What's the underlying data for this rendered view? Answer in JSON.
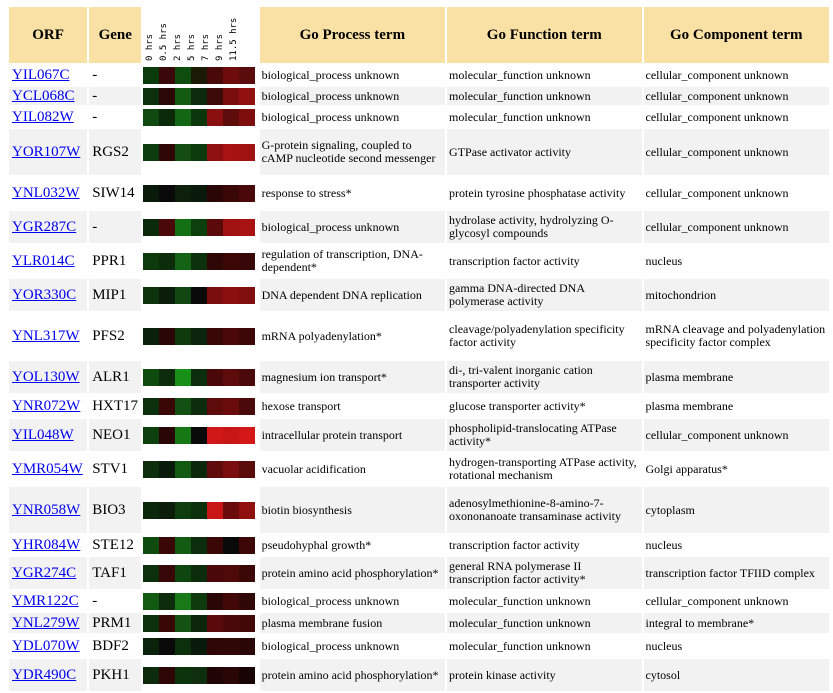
{
  "headers": {
    "orf": "ORF",
    "gene": "Gene",
    "process": "Go Process term",
    "function": "Go Function term",
    "component": "Go Component term"
  },
  "timepoints": [
    "0 hrs",
    "0.5 hrs",
    "2 hrs",
    "5 hrs",
    "7 hrs",
    "9 hrs",
    "11.5 hrs"
  ],
  "rows": [
    {
      "orf": "YIL067C",
      "gene": "-",
      "process": "biological_process unknown",
      "function": "molecular_function unknown",
      "component": "cellular_component unknown",
      "colors": [
        "#0b3a0b",
        "#3a0808",
        "#0f4d0f",
        "#1a1a05",
        "#4a0808",
        "#6e0c0c",
        "#5a0b0b"
      ]
    },
    {
      "orf": "YCL068C",
      "gene": "-",
      "process": "biological_process unknown",
      "function": "molecular_function unknown",
      "component": "cellular_component unknown",
      "colors": [
        "#0c300c",
        "#2c0707",
        "#135a13",
        "#0e2a0e",
        "#3d0808",
        "#7a0d0d",
        "#901010"
      ]
    },
    {
      "orf": "YIL082W",
      "gene": "-",
      "process": "biological_process unknown",
      "function": "molecular_function unknown",
      "component": "cellular_component unknown",
      "colors": [
        "#104a10",
        "#0a2a0a",
        "#136613",
        "#0c360c",
        "#8a0f0f",
        "#5e0b0b",
        "#7e0d0d"
      ]
    },
    {
      "orf": "YOR107W",
      "gene": "RGS2",
      "process": "G-protein signaling, coupled to cAMP nucleotide second messenger",
      "function": "GTPase activator activity",
      "component": "cellular_component unknown",
      "colors": [
        "#0e3c0e",
        "#300707",
        "#134d13",
        "#0c3a0c",
        "#8e1010",
        "#a81212",
        "#a01111"
      ]
    },
    {
      "orf": "YNL032W",
      "gene": "SIW14",
      "process": "response to stress*",
      "function": "protein tyrosine phosphatase activity",
      "component": "cellular_component unknown",
      "colors": [
        "#091a09",
        "#0a0a0a",
        "#0c200c",
        "#0a1a0a",
        "#2a0606",
        "#3a0707",
        "#4a0808"
      ]
    },
    {
      "orf": "YGR287C",
      "gene": "-",
      "process": "biological_process unknown",
      "function": "hydrolase activity, hydrolyzing O-glycosyl compounds",
      "component": "cellular_component unknown",
      "colors": [
        "#0a2a0a",
        "#4a0808",
        "#147014",
        "#0d3f0d",
        "#5a0a0a",
        "#a01111",
        "#a81212"
      ]
    },
    {
      "orf": "YLR014C",
      "gene": "PPR1",
      "process": "regulation of transcription, DNA-dependent*",
      "function": "transcription factor activity",
      "component": "nucleus",
      "colors": [
        "#0d3a0d",
        "#0c2c0c",
        "#146214",
        "#0d300d",
        "#2e0606",
        "#3e0707",
        "#380707"
      ]
    },
    {
      "orf": "YOR330C",
      "gene": "MIP1",
      "process": "DNA dependent DNA replication",
      "function": "gamma DNA-directed DNA polymerase activity",
      "component": "mitochondrion",
      "colors": [
        "#0c340c",
        "#0a1e0a",
        "#114811",
        "#0a0a0a",
        "#7a0d0d",
        "#8c0f0f",
        "#800e0e"
      ]
    },
    {
      "orf": "YNL317W",
      "gene": "PFS2",
      "process": "mRNA polyadenylation*",
      "function": "cleavage/polyadenylation specificity factor activity",
      "component": "mRNA cleavage and polyadenylation specificity factor complex",
      "colors": [
        "#0a200a",
        "#2a0606",
        "#0e3a0e",
        "#0c240c",
        "#3a0707",
        "#4a0808",
        "#3e0707"
      ]
    },
    {
      "orf": "YOL130W",
      "gene": "ALR1",
      "process": "magnesium ion transport*",
      "function": "di-, tri-valent inorganic cation transporter activity",
      "component": "plasma membrane",
      "colors": [
        "#0f4a0f",
        "#0c2c0c",
        "#189018",
        "#0d2e0d",
        "#4a0808",
        "#5e0b0b",
        "#4c0909"
      ]
    },
    {
      "orf": "YNR072W",
      "gene": "HXT17",
      "process": "hexose transport",
      "function": "glucose transporter activity*",
      "component": "plasma membrane",
      "colors": [
        "#0c300c",
        "#3a0707",
        "#135013",
        "#0c2c0c",
        "#5e0b0b",
        "#6a0c0c",
        "#4c0909"
      ]
    },
    {
      "orf": "YIL048W",
      "gene": "NEO1",
      "process": "intracellular protein transport",
      "function": "phospholipid-translocating ATPase activity*",
      "component": "cellular_component unknown",
      "colors": [
        "#0e400e",
        "#2a0606",
        "#157815",
        "#0a0a0a",
        "#d01818",
        "#c81616",
        "#d41818"
      ]
    },
    {
      "orf": "YMR054W",
      "gene": "STV1",
      "process": "vacuolar acidification",
      "function": "hydrogen-transporting ATPase activity, rotational mechanism",
      "component": "Golgi apparatus*",
      "colors": [
        "#0c2e0c",
        "#0a1a0a",
        "#125a12",
        "#0c280c",
        "#600b0b",
        "#7a0d0d",
        "#5a0b0b"
      ]
    },
    {
      "orf": "YNR058W",
      "gene": "BIO3",
      "process": "biotin biosynthesis",
      "function": "adenosylmethionine-8-amino-7-oxononanoate transaminase activity",
      "component": "cytoplasm",
      "colors": [
        "#0a280a",
        "#0a1e0a",
        "#0e3e0e",
        "#0c300c",
        "#c81616",
        "#6a0c0c",
        "#900f0f"
      ]
    },
    {
      "orf": "YHR084W",
      "gene": "STE12",
      "process": "pseudohyphal growth*",
      "function": "transcription factor activity",
      "component": "nucleus",
      "colors": [
        "#0f4a0f",
        "#3a0707",
        "#135a13",
        "#0c2e0c",
        "#3a0707",
        "#0a0a0a",
        "#3e0707"
      ]
    },
    {
      "orf": "YGR274C",
      "gene": "TAF1",
      "process": "protein amino acid phosphorylation*",
      "function": "general RNA polymerase II transcription factor activity*",
      "component": "transcription factor TFIID complex",
      "colors": [
        "#0c300c",
        "#380707",
        "#0f460f",
        "#0c2c0c",
        "#4a0808",
        "#4e0909",
        "#3c0707"
      ]
    },
    {
      "orf": "YMR122C",
      "gene": "-",
      "process": "biological_process unknown",
      "function": "molecular_function unknown",
      "component": "cellular_component unknown",
      "colors": [
        "#125a12",
        "#0c2c0c",
        "#177a17",
        "#0e3a0e",
        "#2a0606",
        "#420808",
        "#300707"
      ]
    },
    {
      "orf": "YNL279W",
      "gene": "PRM1",
      "process": "plasma membrane fusion",
      "function": "molecular_function unknown",
      "component": "integral to membrane*",
      "colors": [
        "#0c300c",
        "#3a0707",
        "#135213",
        "#0c260c",
        "#5a0a0a",
        "#4a0808",
        "#420808"
      ]
    },
    {
      "orf": "YDL070W",
      "gene": "BDF2",
      "process": "biological_process unknown",
      "function": "molecular_function unknown",
      "component": "nucleus",
      "colors": [
        "#0a220a",
        "#0a0a0a",
        "#0c300c",
        "#0a1a0a",
        "#2e0606",
        "#300707",
        "#2a0606"
      ]
    },
    {
      "orf": "YDR490C",
      "gene": "PKH1",
      "process": "protein amino acid phosphorylation*",
      "function": "protein kinase activity",
      "component": "cytosol",
      "colors": [
        "#0c2a0c",
        "#2e0606",
        "#0c340c",
        "#0e2e0e",
        "#200505",
        "#2a0606",
        "#180404"
      ]
    }
  ]
}
